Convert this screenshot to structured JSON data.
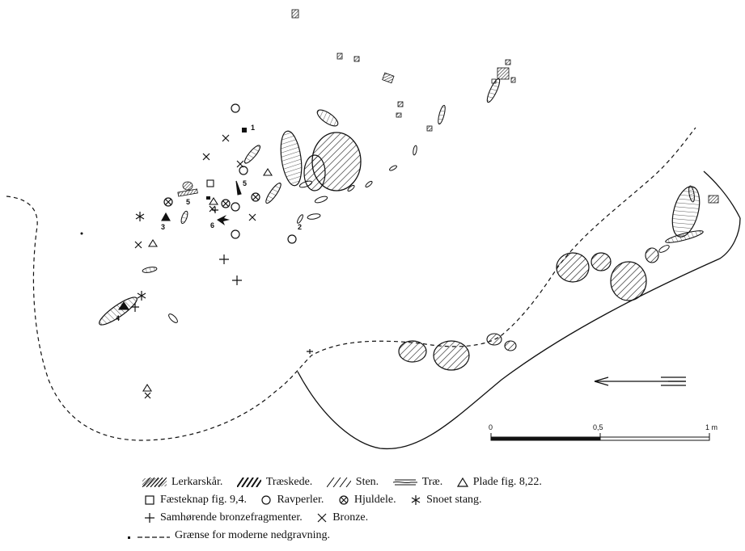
{
  "legend": {
    "lerkarskar": "Lerkarskår.",
    "traeskede": "Træskede.",
    "sten": "Sten.",
    "trae": "Træ.",
    "plade": "Plade fig. 8,22.",
    "faesteknap": "Fæsteknap fig. 9,4.",
    "ravperler": "Ravperler.",
    "hjuldele": "Hjuldele.",
    "snoet_stang": "Snoet stang.",
    "bronzefragmenter": "Samhørende bronzefragmenter.",
    "bronze": "Bronze.",
    "graense": "Grænse for moderne nedgravning."
  },
  "scale_bar": {
    "tick_start": "0",
    "tick_mid": "0,5",
    "tick_end": "1 m"
  },
  "find_numbers": [
    "1",
    "2",
    "3",
    "4",
    "5",
    "5",
    "6"
  ],
  "colors": {
    "ink": "#111111",
    "paper": "#ffffff"
  }
}
